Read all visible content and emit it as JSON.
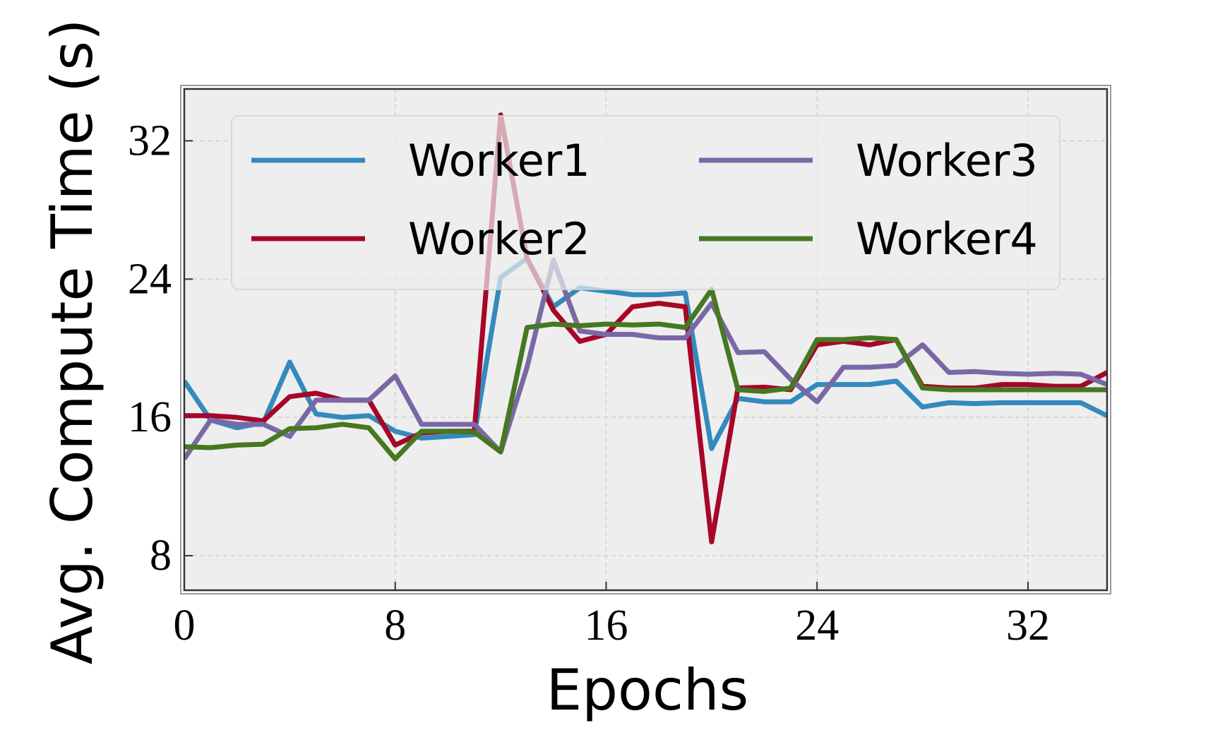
{
  "chart_data": {
    "type": "line",
    "x_label": "Epochs",
    "y_label": "Avg. Compute Time (s)",
    "x": [
      0,
      1,
      2,
      3,
      4,
      5,
      6,
      7,
      8,
      9,
      10,
      11,
      12,
      13,
      14,
      15,
      16,
      17,
      18,
      19,
      20,
      21,
      22,
      23,
      24,
      25,
      26,
      27,
      28,
      29,
      30,
      31,
      32,
      33,
      34,
      35
    ],
    "series": [
      {
        "name": "Worker1",
        "color": "#348abd",
        "values": [
          18.1,
          15.85,
          15.4,
          15.7,
          19.2,
          16.2,
          16.0,
          16.1,
          15.2,
          14.8,
          14.9,
          15.0,
          24.1,
          25.2,
          22.4,
          23.5,
          23.3,
          23.1,
          23.1,
          23.2,
          14.2,
          17.1,
          16.9,
          16.9,
          17.9,
          17.9,
          17.9,
          18.1,
          16.6,
          16.85,
          16.8,
          16.85,
          16.85,
          16.85,
          16.85,
          16.1
        ]
      },
      {
        "name": "Worker2",
        "color": "#a60628",
        "values": [
          16.1,
          16.1,
          16.0,
          15.8,
          17.2,
          17.4,
          17.0,
          17.0,
          14.4,
          15.1,
          15.2,
          15.2,
          33.5,
          25.2,
          22.2,
          20.4,
          20.8,
          22.4,
          22.6,
          22.4,
          8.8,
          17.7,
          17.75,
          17.6,
          20.2,
          20.4,
          20.2,
          20.5,
          17.8,
          17.7,
          17.7,
          17.9,
          17.9,
          17.8,
          17.8,
          18.6
        ]
      },
      {
        "name": "Worker3",
        "color": "#7a68a6",
        "values": [
          13.6,
          15.85,
          15.6,
          15.6,
          14.9,
          17.0,
          17.0,
          17.0,
          18.4,
          15.6,
          15.6,
          15.6,
          14.0,
          18.9,
          25.1,
          21.0,
          20.8,
          20.8,
          20.6,
          20.6,
          22.6,
          19.75,
          19.8,
          18.2,
          16.9,
          18.9,
          18.9,
          19.0,
          20.2,
          18.6,
          18.65,
          18.55,
          18.5,
          18.55,
          18.5,
          17.9
        ]
      },
      {
        "name": "Worker4",
        "color": "#467821",
        "values": [
          14.3,
          14.25,
          14.4,
          14.45,
          15.35,
          15.4,
          15.6,
          15.4,
          13.6,
          15.2,
          15.2,
          15.15,
          14.0,
          21.2,
          21.4,
          21.3,
          21.4,
          21.35,
          21.4,
          21.2,
          23.4,
          17.6,
          17.5,
          17.7,
          20.5,
          20.5,
          20.6,
          20.5,
          17.7,
          17.6,
          17.6,
          17.6,
          17.6,
          17.6,
          17.6,
          17.6
        ]
      }
    ],
    "xlim": [
      0,
      35
    ],
    "ylim": [
      6,
      35
    ],
    "xticks": [
      0,
      8,
      16,
      24,
      32
    ],
    "yticks": [
      8,
      16,
      24,
      32
    ],
    "grid": true,
    "legend_loc": "upper center",
    "legend_ncol": 2
  }
}
